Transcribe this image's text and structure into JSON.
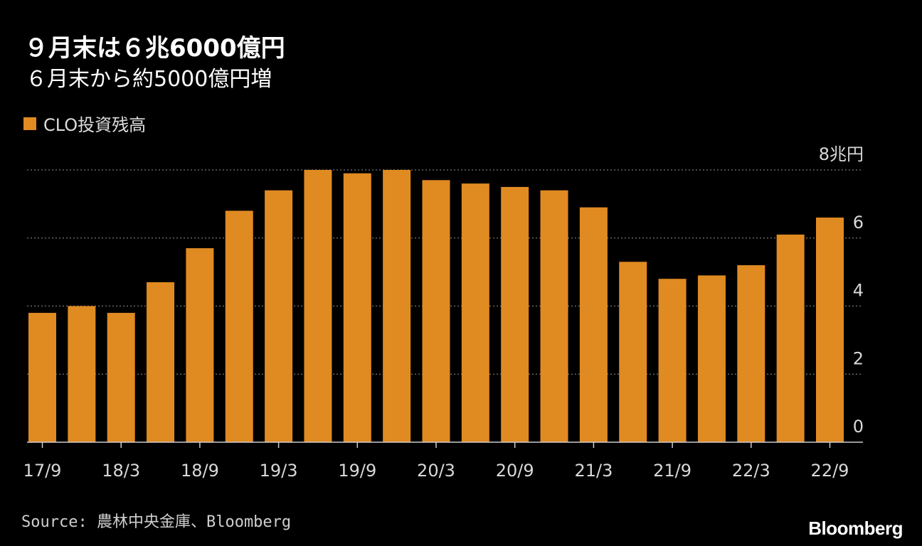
{
  "title": "９月末は６兆6000億円",
  "subtitle": "６月末から約5000億円増",
  "source": "Source: 農林中央金庫、Bloomberg",
  "brand": "Bloomberg",
  "colors": {
    "bar": "#e08a22",
    "background": "#000000",
    "grid": "#777777",
    "axis": "#cccccc"
  },
  "chart_data": {
    "type": "bar",
    "series": [
      {
        "name": "CLO投資残高",
        "values": [
          3.8,
          4.0,
          3.8,
          4.7,
          5.7,
          6.8,
          7.4,
          8.0,
          7.9,
          8.0,
          7.7,
          7.6,
          7.5,
          7.4,
          6.9,
          5.3,
          4.8,
          4.9,
          5.2,
          6.1,
          6.6
        ]
      }
    ],
    "x_tick_labels": [
      "17/9",
      "18/3",
      "18/9",
      "19/3",
      "19/9",
      "20/3",
      "20/9",
      "21/3",
      "21/9",
      "22/3",
      "22/9"
    ],
    "y_tick_labels": [
      "0",
      "2",
      "4",
      "6",
      "8兆円"
    ],
    "y_ticks": [
      0,
      2,
      4,
      6,
      8
    ],
    "ylim": [
      0,
      8
    ],
    "y_axis_side": "right",
    "legend_position": "top-left",
    "grid": "dotted horizontal"
  }
}
